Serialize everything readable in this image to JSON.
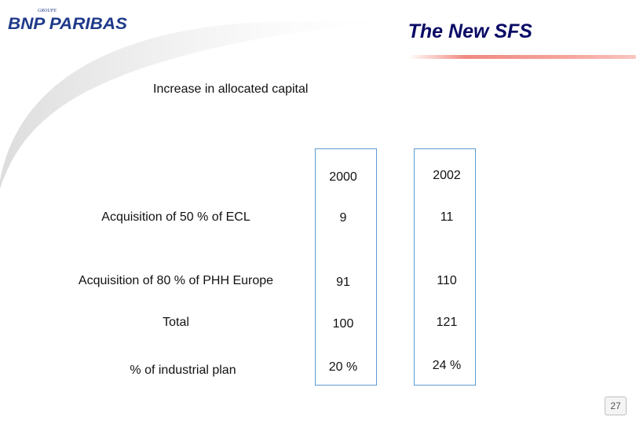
{
  "header": {
    "logo_small_text": "GROUPE",
    "logo_text": "BNP PARIBAS",
    "title": "The New SFS",
    "brand_color": "#1f3a8a",
    "title_color": "#0a0a66",
    "accent_color": "#f08a80"
  },
  "subtitle": "Increase in allocated capital",
  "table": {
    "columns": [
      "2000",
      "2002"
    ],
    "rows": [
      {
        "label": "Acquisition of 50 % of ECL",
        "values": [
          "9",
          "11"
        ]
      },
      {
        "label": "Acquisition of 80 % of PHH Europe",
        "values": [
          "91",
          "110"
        ]
      },
      {
        "label": "Total",
        "values": [
          "100",
          "121"
        ]
      },
      {
        "label": "% of industrial plan",
        "values": [
          "20 %",
          "24 %"
        ]
      }
    ],
    "column_border_color": "#5b9bd5"
  },
  "footer": {
    "page_number": "27"
  }
}
